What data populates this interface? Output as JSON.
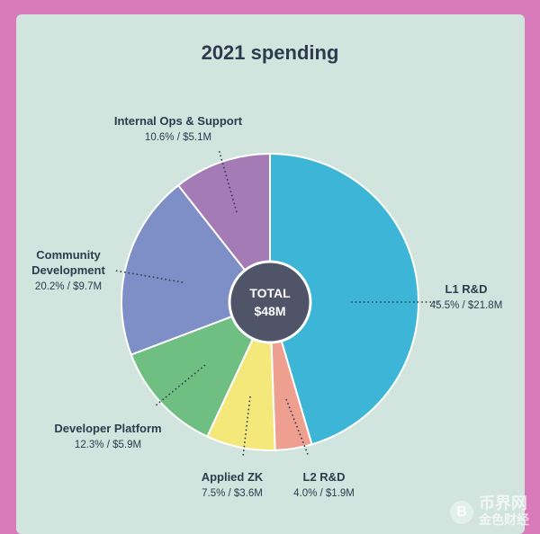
{
  "chart_data": {
    "type": "pie",
    "title": "2021 spending",
    "center_label": [
      "TOTAL",
      "$48M"
    ],
    "unit": "$M",
    "slices": [
      {
        "name": [
          "L1 R&D"
        ],
        "percent": 45.5,
        "value": 21.8,
        "value_label": "45.5% / $21.8M",
        "color": "#3db5d6"
      },
      {
        "name": [
          "L2 R&D"
        ],
        "percent": 4.0,
        "value": 1.9,
        "value_label": "4.0% / $1.9M",
        "color": "#ee9f90"
      },
      {
        "name": [
          "Applied ZK"
        ],
        "percent": 7.5,
        "value": 3.6,
        "value_label": "7.5% / $3.6M",
        "color": "#f5e87a"
      },
      {
        "name": [
          "Developer Platform"
        ],
        "percent": 12.3,
        "value": 5.9,
        "value_label": "12.3% / $5.9M",
        "color": "#6fbf82"
      },
      {
        "name": [
          "Community",
          "Development"
        ],
        "percent": 20.2,
        "value": 9.7,
        "value_label": "20.2% / $9.7M",
        "color": "#7d8fc6"
      },
      {
        "name": [
          "Internal Ops & Support"
        ],
        "percent": 10.6,
        "value": 5.1,
        "value_label": "10.6% / $5.1M",
        "color": "#a57bb6"
      }
    ]
  },
  "colors": {
    "background": "#d97bbb",
    "card": "#d1e4de",
    "center": "#4f5468",
    "text": "#2f3a4e"
  },
  "watermark": {
    "coin": "B",
    "line1": "币界网",
    "line2": "金色财经"
  }
}
